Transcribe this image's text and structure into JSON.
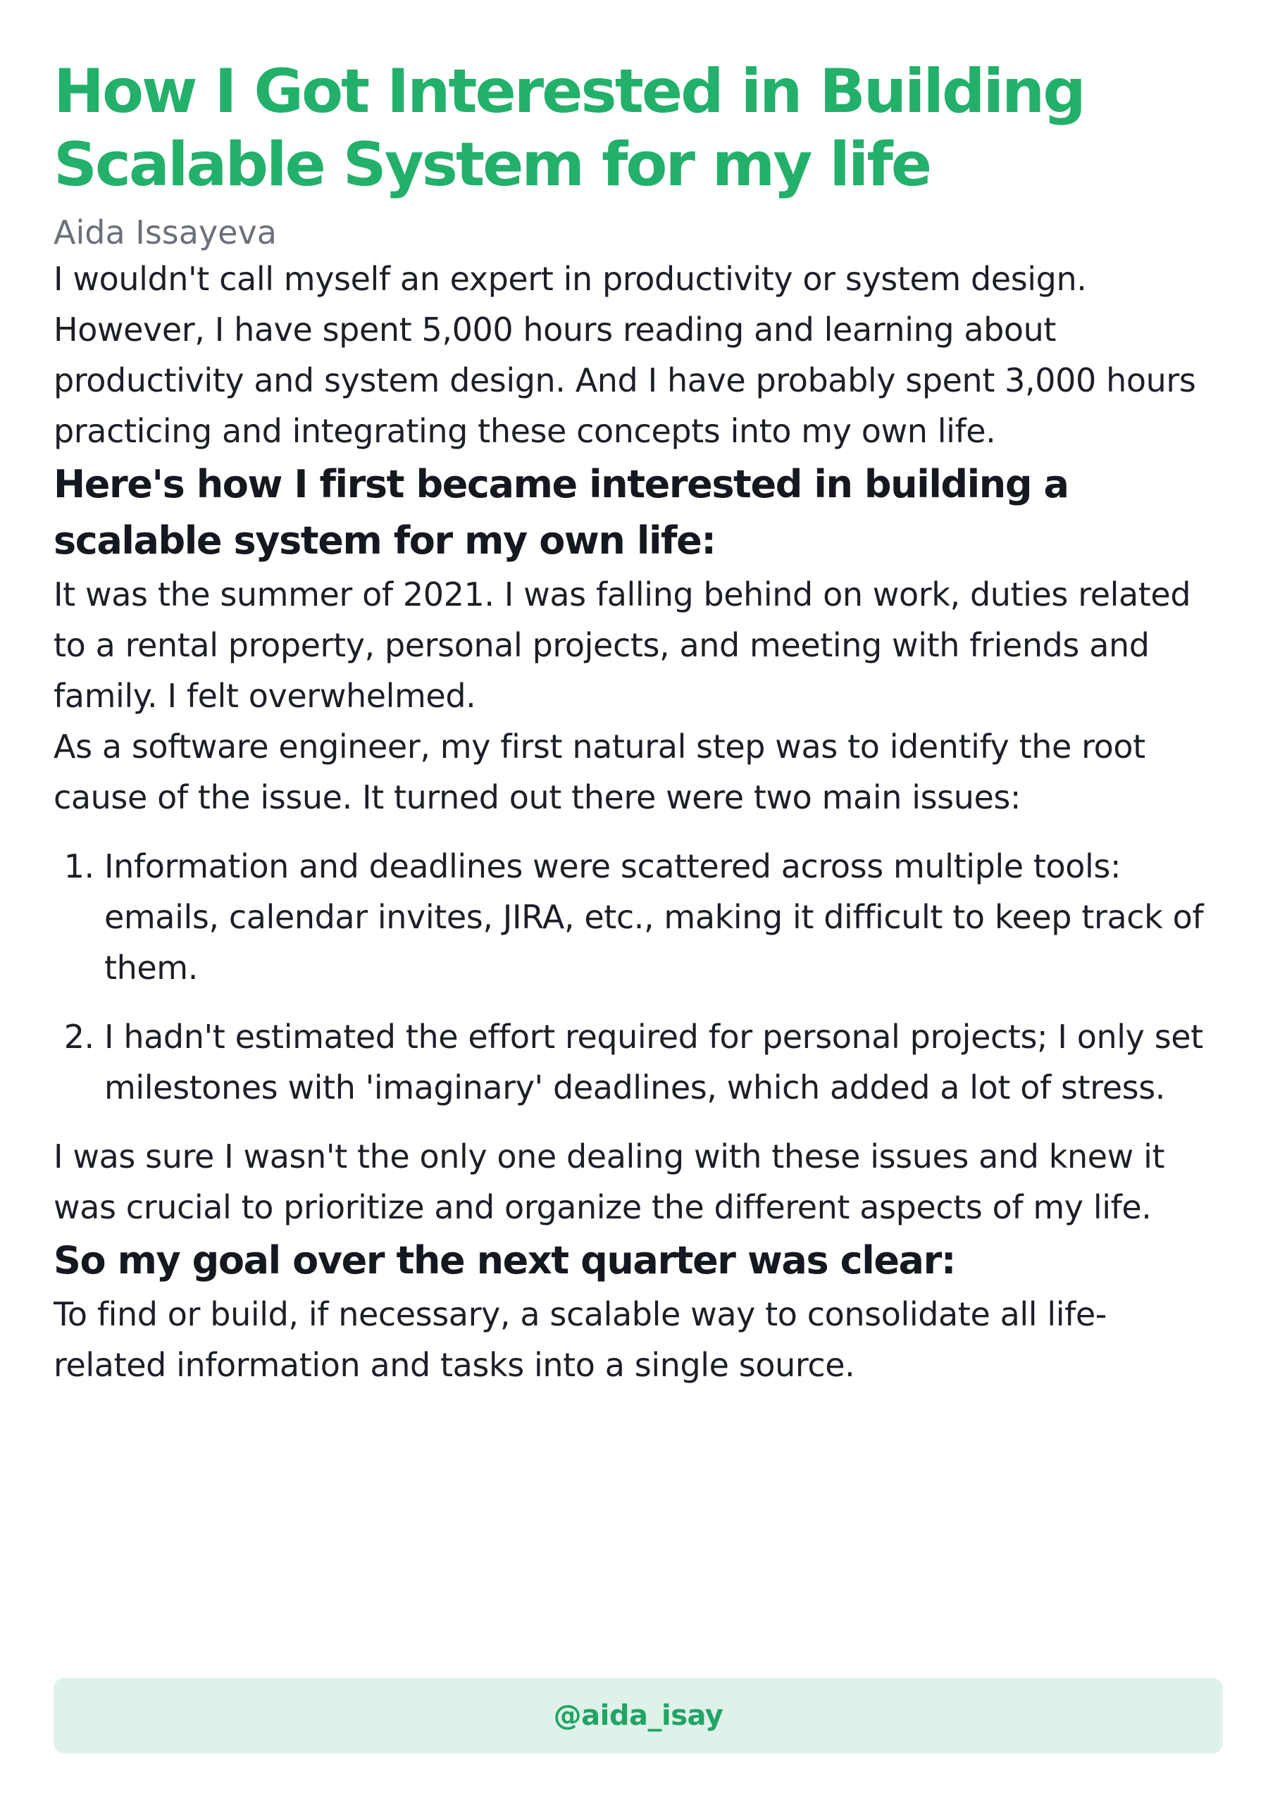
{
  "article": {
    "title": "How I Got Interested in Building Scalable System for my life",
    "author": "Aida Issayeva",
    "paragraphs": {
      "intro": "I wouldn't call myself an expert in productivity or system design.",
      "hours": "However, I have spent 5,000 hours reading and learning about productivity and system design. And I have probably spent 3,000 hours practicing and integrating these concepts into my own life.",
      "summer": "It was the summer of 2021. I was falling behind on work, duties related to a rental property, personal projects, and meeting with friends and family. I felt overwhelmed.",
      "engineer": "As a software engineer, my first natural step was to identify the root cause of the issue. It turned out there were two main issues:",
      "sure": "I was sure I wasn't the only one dealing with these issues and knew it was crucial to prioritize and organize the different aspects of my life.",
      "goal": "To find or build, if necessary, a scalable way to consolidate all life-related information and tasks into a single source."
    },
    "headings": {
      "first": "Here's how I first became interested in building a scalable system for my own life:",
      "second": "So my goal over the next quarter was clear:"
    },
    "issues": [
      "Information and deadlines were scattered across multiple tools: emails, calendar invites, JIRA, etc., making it difficult to keep track of them.",
      "I hadn't estimated the effort required for personal projects; I only set milestones with 'imaginary' deadlines, which added a lot of stress."
    ]
  },
  "footer": {
    "handle": "@aida_isay"
  },
  "colors": {
    "title": "#22b06a",
    "author": "#6b7079",
    "body_text": "#1c1f26",
    "handle_bar_bg": "#def2e9",
    "handle_text": "#22a466"
  }
}
